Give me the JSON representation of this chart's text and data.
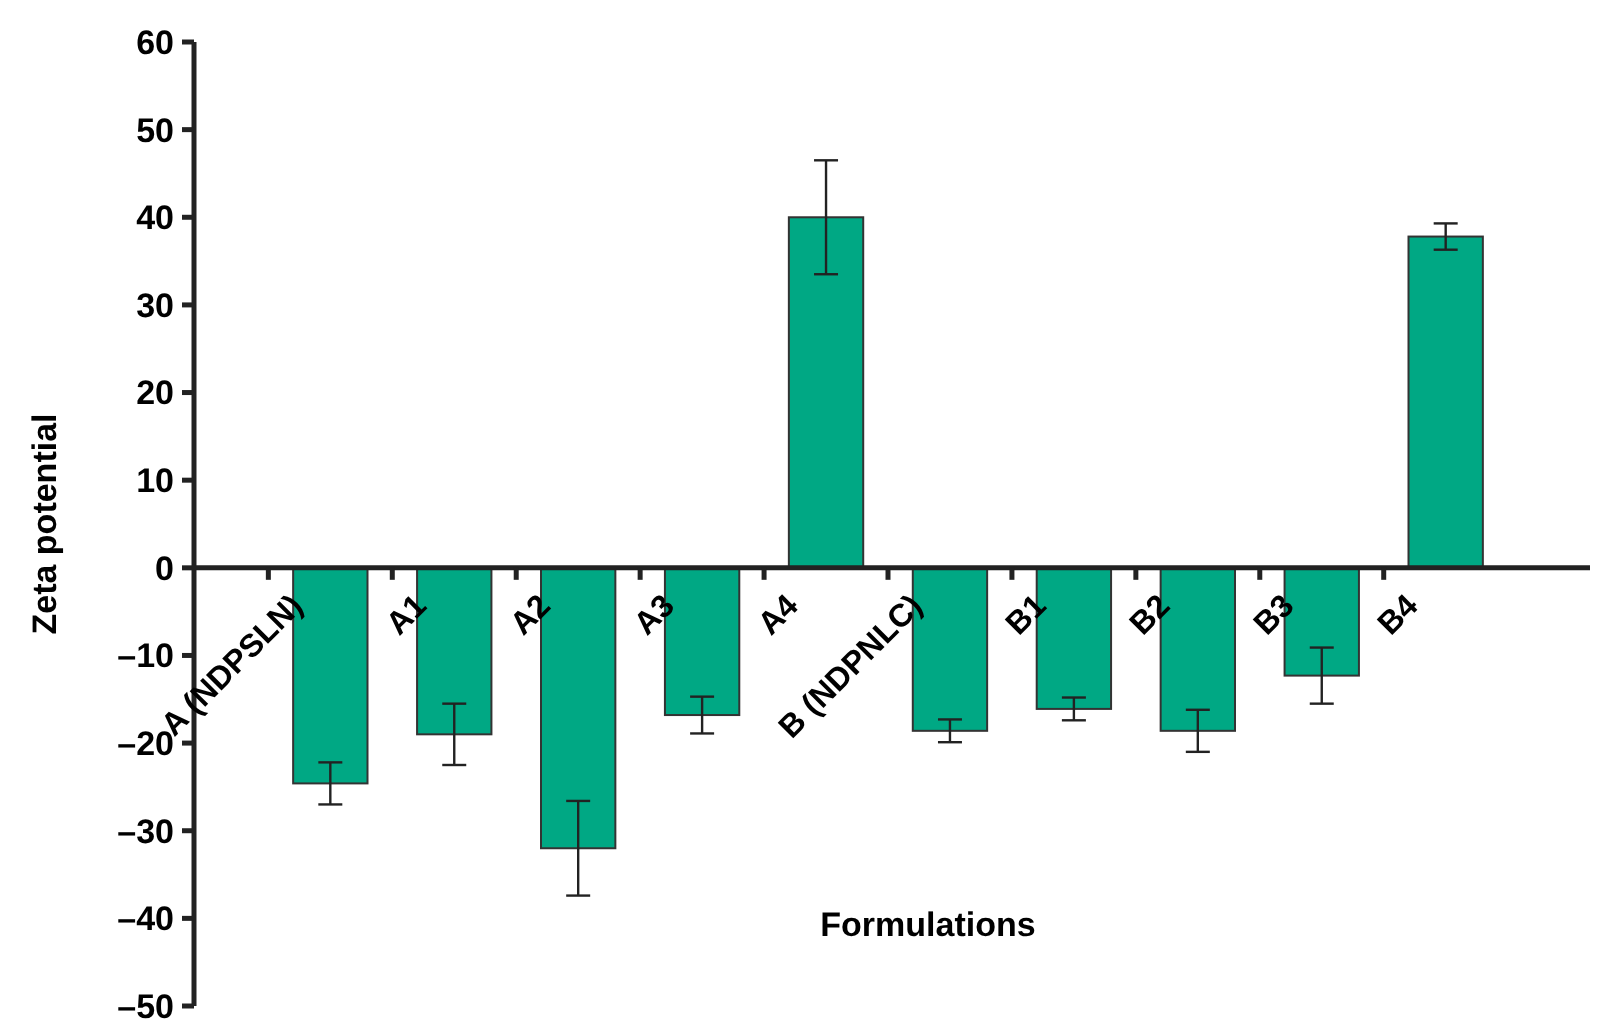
{
  "chart_data": {
    "type": "bar",
    "xlabel": "Formulations",
    "ylabel": "Zeta potential",
    "categories": [
      "A (NDPSLN)",
      "A1",
      "A2",
      "A3",
      "A4",
      "B (NDPNLC)",
      "B1",
      "B2",
      "B3",
      "B4"
    ],
    "values": [
      -24.6,
      -19.0,
      -32.0,
      -16.8,
      40.0,
      -18.6,
      -16.1,
      -18.6,
      -12.3,
      37.8
    ],
    "errors": [
      2.4,
      3.5,
      5.4,
      2.1,
      6.5,
      1.3,
      1.3,
      2.4,
      3.2,
      1.5
    ],
    "color": "#00a884",
    "ylim": [
      -50,
      60
    ],
    "yticks": [
      {
        "value": -50,
        "label": "–50"
      },
      {
        "value": -40,
        "label": "–40"
      },
      {
        "value": -30,
        "label": "–30"
      },
      {
        "value": -20,
        "label": "–20"
      },
      {
        "value": -10,
        "label": "–10"
      },
      0,
      10,
      20,
      30,
      40,
      50,
      60
    ],
    "grid": false
  }
}
